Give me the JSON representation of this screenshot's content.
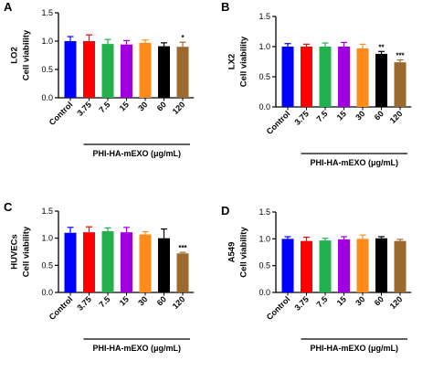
{
  "chart_data": [
    {
      "panel": "A",
      "type": "bar",
      "ylabel": "LO2\nCell viability",
      "ylim": [
        0,
        1.5
      ],
      "yticks": [
        "0.0",
        "0.5",
        "1.0",
        "1.5"
      ],
      "categories": [
        "Control",
        "3.75",
        "7.5",
        "15",
        "30",
        "60",
        "120"
      ],
      "values": [
        1.0,
        1.0,
        0.95,
        0.94,
        0.97,
        0.91,
        0.9
      ],
      "errors": [
        0.08,
        0.11,
        0.08,
        0.07,
        0.05,
        0.06,
        0.08
      ],
      "significance": [
        "",
        "",
        "",
        "",
        "",
        "",
        "*"
      ],
      "group_label": "PHI-HA-mEXO (μg/mL)"
    },
    {
      "panel": "B",
      "type": "bar",
      "ylabel": "LX2\nCell viability",
      "ylim": [
        0,
        1.5
      ],
      "yticks": [
        "0.0",
        "0.5",
        "1.0",
        "1.5"
      ],
      "categories": [
        "Control",
        "3.75",
        "7.5",
        "15",
        "30",
        "60",
        "120"
      ],
      "values": [
        1.0,
        1.0,
        1.0,
        1.0,
        0.97,
        0.88,
        0.74
      ],
      "errors": [
        0.05,
        0.04,
        0.06,
        0.07,
        0.07,
        0.04,
        0.04
      ],
      "significance": [
        "",
        "",
        "",
        "",
        "",
        "**",
        "***"
      ],
      "group_label": "PHI-HA-mEXO (μg/mL)"
    },
    {
      "panel": "C",
      "type": "bar",
      "ylabel": "HUVECs\nCell viability",
      "ylim": [
        0,
        1.5
      ],
      "yticks": [
        "0.0",
        "0.5",
        "1.0",
        "1.5"
      ],
      "categories": [
        "Control",
        "3.75",
        "7.5",
        "15",
        "30",
        "60",
        "120"
      ],
      "values": [
        1.1,
        1.11,
        1.13,
        1.11,
        1.07,
        1.0,
        0.72
      ],
      "errors": [
        0.1,
        0.1,
        0.06,
        0.09,
        0.05,
        0.17,
        0.02
      ],
      "significance": [
        "",
        "",
        "",
        "",
        "",
        "",
        "***"
      ],
      "group_label": "PHI-HA-mEXO (μg/mL)"
    },
    {
      "panel": "D",
      "type": "bar",
      "ylabel": "A549\nCell viability",
      "ylim": [
        0,
        1.5
      ],
      "yticks": [
        "0.0",
        "0.5",
        "1.0",
        "1.5"
      ],
      "categories": [
        "Control",
        "3.75",
        "7.5",
        "15",
        "30",
        "60",
        "120"
      ],
      "values": [
        1.0,
        0.96,
        0.97,
        0.99,
        1.0,
        1.01,
        0.96
      ],
      "errors": [
        0.04,
        0.07,
        0.04,
        0.05,
        0.07,
        0.03,
        0.03
      ],
      "significance": [
        "",
        "",
        "",
        "",
        "",
        "",
        ""
      ],
      "group_label": "PHI-HA-mEXO (μg/mL)"
    }
  ],
  "colors": [
    "#0000ff",
    "#ff0000",
    "#22b14c",
    "#a000e0",
    "#ff8c1a",
    "#000000",
    "#9b6a2f"
  ]
}
